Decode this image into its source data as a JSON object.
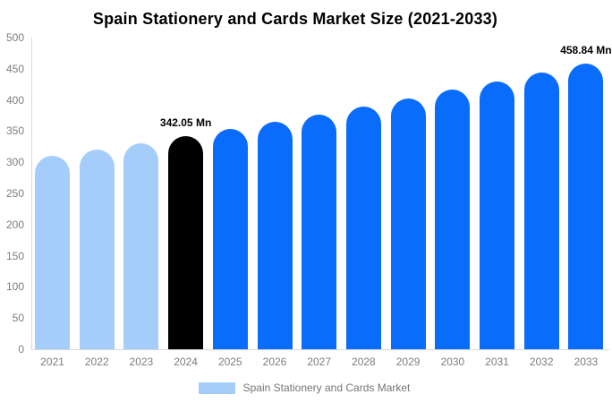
{
  "chart_data": {
    "type": "bar",
    "title": "Spain Stationery and Cards Market Size (2021-2033)",
    "unit": "Mn",
    "categories": [
      "2021",
      "2022",
      "2023",
      "2024",
      "2025",
      "2026",
      "2027",
      "2028",
      "2029",
      "2030",
      "2031",
      "2032",
      "2033"
    ],
    "values": [
      310,
      320,
      331,
      342.05,
      353,
      365,
      377,
      390,
      403,
      416,
      430,
      444,
      458.84
    ],
    "bar_roles": [
      "light",
      "light",
      "light",
      "highlight",
      "primary",
      "primary",
      "primary",
      "primary",
      "primary",
      "primary",
      "primary",
      "primary",
      "primary"
    ],
    "annotations": [
      {
        "category": "2024",
        "text": "342.05 Mn"
      },
      {
        "category": "2033",
        "text": "458.84 Mn"
      }
    ],
    "ylim": [
      0,
      500
    ],
    "yticks": [
      0,
      50,
      100,
      150,
      200,
      250,
      300,
      350,
      400,
      450,
      500
    ],
    "grid": false,
    "legend_position": "bottom"
  },
  "legend": {
    "label": "Spain Stationery and Cards Market"
  },
  "colors": {
    "background": "#FFFFFF",
    "bar_light": "#A5CDFA",
    "bar_primary": "#0A6CFA",
    "bar_highlight": "#000000",
    "title_text": "#000000",
    "label_text": "#000000",
    "axis_text": "#7D7D7D",
    "legend_text": "#757575",
    "axis_line": "#D9D9D9"
  }
}
